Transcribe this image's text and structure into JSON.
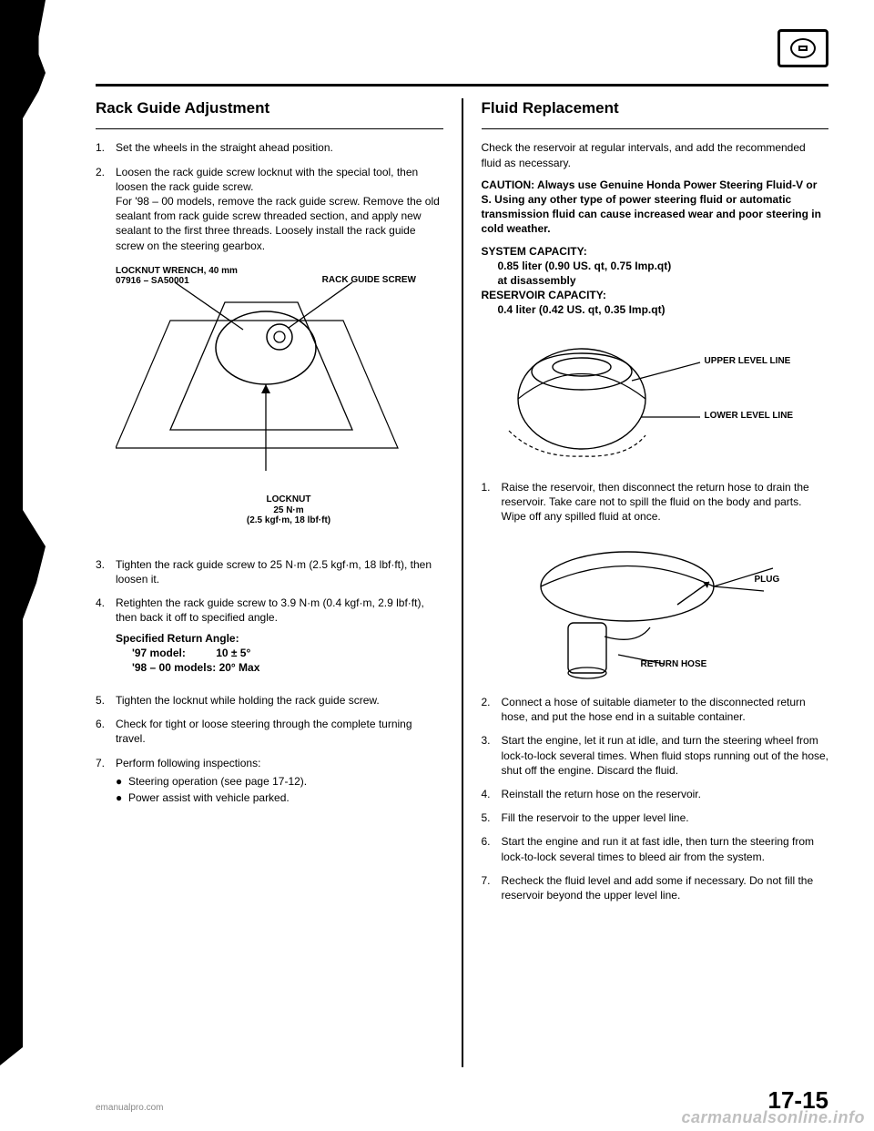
{
  "header": {
    "icon_name": "owners-manual-icon"
  },
  "left": {
    "title": "Rack Guide Adjustment",
    "steps": [
      {
        "n": "1.",
        "text": "Set the wheels in the straight ahead position."
      },
      {
        "n": "2.",
        "text": "Loosen the rack guide screw locknut with the special tool, then loosen the rack guide screw.\nFor '98 – 00 models, remove the rack guide screw. Remove the old sealant from rack guide screw threaded section, and apply new sealant to the first three threads. Loosely install the rack guide screw on the steering gearbox."
      },
      {
        "n": "3.",
        "text": "Tighten the rack guide screw to 25 N·m (2.5 kgf·m, 18 lbf·ft), then loosen it."
      },
      {
        "n": "4.",
        "text": "Retighten the rack guide screw to 3.9 N·m (0.4 kgf·m, 2.9 lbf·ft), then back it off to specified angle."
      },
      {
        "n": "5.",
        "text": "Tighten the locknut while holding the rack guide screw."
      },
      {
        "n": "6.",
        "text": "Check for tight or loose steering through the complete turning travel."
      },
      {
        "n": "7.",
        "text": "Perform following inspections:"
      }
    ],
    "diagram_labels": {
      "wrench": "LOCKNUT WRENCH, 40 mm\n07916 – SA50001",
      "screw": "RACK GUIDE SCREW",
      "locknut": "LOCKNUT\n25 N·m\n(2.5 kgf·m, 18 lbf·ft)"
    },
    "spec": {
      "title": "Specified Return Angle:",
      "line1": "'97 model:          10 ± 5°",
      "line2": "'98 – 00 models: 20° Max"
    },
    "sub7": [
      "Steering operation (see page 17-12).",
      "Power assist with vehicle parked."
    ]
  },
  "right": {
    "title": "Fluid Replacement",
    "intro": "Check the reservoir at regular intervals, and add the recommended fluid as necessary.",
    "caution": "CAUTION: Always use Genuine Honda Power Steering Fluid-V or S. Using any other type of power steering fluid or automatic transmission fluid can cause increased wear and poor steering in cold weather.",
    "syscap_title": "SYSTEM CAPACITY:",
    "syscap_line1": "0.85 liter (0.90 US. qt, 0.75 Imp.qt)",
    "syscap_line2": "at disassembly",
    "rescap_title": "RESERVOIR CAPACITY:",
    "rescap_line1": "0.4 liter (0.42 US. qt, 0.35 Imp.qt)",
    "reservoir_labels": {
      "upper": "UPPER LEVEL LINE",
      "lower": "LOWER LEVEL LINE"
    },
    "steps": [
      {
        "n": "1.",
        "text": "Raise the reservoir, then disconnect the return hose to drain the reservoir. Take care not to spill the fluid on the body and parts. Wipe off any spilled fluid at once."
      },
      {
        "n": "2.",
        "text": "Connect a hose of suitable diameter to the disconnected return hose, and put the hose end in a suitable container."
      },
      {
        "n": "3.",
        "text": "Start the engine, let it run at idle, and turn the steering wheel from lock-to-lock several times. When fluid stops running out of the hose, shut off the engine. Discard the fluid."
      },
      {
        "n": "4.",
        "text": "Reinstall the return hose on the reservoir."
      },
      {
        "n": "5.",
        "text": "Fill the reservoir to the upper level line."
      },
      {
        "n": "6.",
        "text": "Start the engine and run it at fast idle, then turn the steering from lock-to-lock several times to bleed air from the system."
      },
      {
        "n": "7.",
        "text": "Recheck the fluid level and add some if necessary. Do not fill the reservoir beyond the upper level line."
      }
    ],
    "drain_labels": {
      "plug": "PLUG",
      "return_hose": "RETURN HOSE"
    }
  },
  "footer": {
    "left": "emanualpro.com",
    "page": "17-15",
    "watermark": "carmanualsonline.info"
  }
}
